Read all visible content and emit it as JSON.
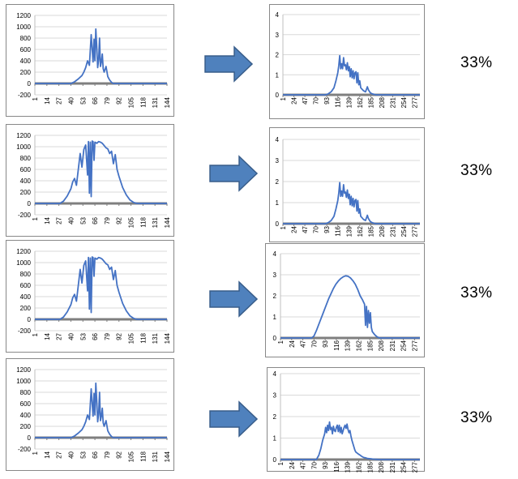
{
  "colors": {
    "line": "#4472C4",
    "zero_axis": "#7F7F7F",
    "grid": "#D9D9D9",
    "arrow_fill": "#4F81BD",
    "arrow_stroke": "#385D8A",
    "frame": "#888888"
  },
  "rows": [
    {
      "percent": "33%"
    },
    {
      "percent": "33%"
    },
    {
      "percent": "33%"
    },
    {
      "percent": "33%"
    }
  ],
  "chart_data": [
    {
      "type": "line",
      "title": "",
      "xlabel": "",
      "ylabel": "",
      "ylim": [
        -200,
        1200
      ],
      "yticks": [
        "-200",
        "0",
        "200",
        "400",
        "600",
        "800",
        "1000",
        "1200"
      ],
      "xticks": [
        "1",
        "14",
        "27",
        "40",
        "53",
        "66",
        "79",
        "92",
        "105",
        "118",
        "131",
        "144"
      ],
      "x": [
        1,
        40,
        44,
        48,
        52,
        54,
        56,
        58,
        60,
        62,
        64,
        65,
        66,
        67,
        68,
        69,
        70,
        71,
        72,
        73,
        74,
        75,
        76,
        78,
        80,
        82,
        84,
        86,
        88,
        92,
        144
      ],
      "y": [
        0,
        0,
        30,
        80,
        140,
        200,
        280,
        400,
        320,
        860,
        380,
        780,
        400,
        960,
        640,
        280,
        420,
        800,
        300,
        380,
        520,
        260,
        200,
        300,
        120,
        60,
        20,
        0,
        0,
        0,
        0
      ]
    },
    {
      "type": "line",
      "title": "",
      "xlabel": "",
      "ylabel": "",
      "ylim": [
        -200,
        1200
      ],
      "yticks": [
        "-200",
        "0",
        "200",
        "400",
        "600",
        "800",
        "1000",
        "1200"
      ],
      "xticks": [
        "1",
        "14",
        "27",
        "40",
        "53",
        "66",
        "79",
        "92",
        "105",
        "118",
        "131",
        "144"
      ],
      "x": [
        1,
        28,
        32,
        36,
        40,
        42,
        44,
        46,
        48,
        50,
        52,
        54,
        56,
        58,
        59,
        60,
        61,
        62,
        63,
        64,
        65,
        66,
        68,
        70,
        72,
        74,
        76,
        78,
        80,
        82,
        84,
        86,
        88,
        90,
        92,
        96,
        100,
        104,
        108,
        112,
        116,
        118,
        144
      ],
      "y": [
        0,
        0,
        40,
        130,
        260,
        380,
        440,
        320,
        600,
        880,
        640,
        950,
        1030,
        500,
        1090,
        180,
        1080,
        120,
        1100,
        1090,
        760,
        1080,
        1060,
        1090,
        1080,
        1060,
        1020,
        980,
        960,
        880,
        920,
        700,
        860,
        600,
        480,
        280,
        150,
        60,
        15,
        0,
        0,
        0,
        0
      ]
    },
    {
      "type": "line",
      "title": "",
      "xlabel": "",
      "ylabel": "",
      "ylim": [
        -200,
        1200
      ],
      "yticks": [
        "-200",
        "0",
        "200",
        "400",
        "600",
        "800",
        "1000",
        "1200"
      ],
      "xticks": [
        "1",
        "14",
        "27",
        "40",
        "53",
        "66",
        "79",
        "92",
        "105",
        "118",
        "131",
        "144"
      ],
      "x": [
        1,
        28,
        32,
        36,
        40,
        42,
        44,
        46,
        48,
        50,
        52,
        54,
        56,
        58,
        59,
        60,
        61,
        62,
        63,
        64,
        65,
        66,
        68,
        70,
        72,
        74,
        76,
        78,
        80,
        82,
        84,
        86,
        88,
        90,
        92,
        96,
        100,
        104,
        108,
        112,
        116,
        118,
        144
      ],
      "y": [
        0,
        0,
        40,
        130,
        260,
        380,
        440,
        320,
        600,
        880,
        640,
        950,
        1030,
        500,
        1090,
        180,
        1080,
        120,
        1100,
        1090,
        760,
        1080,
        1060,
        1090,
        1080,
        1060,
        1020,
        980,
        960,
        880,
        920,
        700,
        860,
        600,
        480,
        280,
        150,
        60,
        15,
        0,
        0,
        0,
        0
      ]
    },
    {
      "type": "line",
      "title": "",
      "xlabel": "",
      "ylabel": "",
      "ylim": [
        -200,
        1200
      ],
      "yticks": [
        "-200",
        "0",
        "200",
        "400",
        "600",
        "800",
        "1000",
        "1200"
      ],
      "xticks": [
        "1",
        "14",
        "27",
        "40",
        "53",
        "66",
        "79",
        "92",
        "105",
        "118",
        "131",
        "144"
      ],
      "x": [
        1,
        40,
        44,
        48,
        52,
        54,
        56,
        58,
        60,
        62,
        64,
        65,
        66,
        67,
        68,
        69,
        70,
        71,
        72,
        73,
        74,
        75,
        76,
        78,
        80,
        82,
        84,
        86,
        88,
        92,
        144
      ],
      "y": [
        0,
        0,
        30,
        80,
        140,
        200,
        280,
        400,
        320,
        860,
        380,
        780,
        400,
        960,
        640,
        280,
        420,
        800,
        300,
        380,
        520,
        260,
        200,
        300,
        120,
        60,
        20,
        0,
        0,
        0,
        0
      ]
    },
    {
      "type": "line",
      "title": "",
      "xlabel": "",
      "ylabel": "",
      "ylim": [
        0,
        4
      ],
      "yticks": [
        "0",
        "1",
        "2",
        "3",
        "4"
      ],
      "xticks": [
        "1",
        "24",
        "47",
        "70",
        "93",
        "116",
        "139",
        "162",
        "185",
        "208",
        "231",
        "254",
        "277"
      ],
      "x": [
        1,
        90,
        96,
        102,
        108,
        112,
        116,
        118,
        120,
        122,
        124,
        126,
        128,
        130,
        132,
        134,
        136,
        138,
        140,
        142,
        144,
        146,
        148,
        150,
        152,
        154,
        156,
        158,
        160,
        162,
        164,
        166,
        170,
        174,
        178,
        180,
        184,
        188,
        196,
        288
      ],
      "y": [
        0,
        0,
        0.05,
        0.15,
        0.35,
        0.7,
        1.1,
        1.45,
        1.95,
        1.3,
        1.55,
        1.3,
        1.85,
        1.45,
        1.5,
        1.25,
        1.6,
        1.2,
        1.4,
        0.9,
        1.3,
        0.85,
        1.2,
        0.8,
        1.1,
        1.15,
        0.6,
        1.1,
        0.5,
        0.7,
        0.35,
        0.3,
        0.2,
        0.15,
        0.4,
        0.25,
        0.1,
        0.05,
        0,
        0
      ]
    },
    {
      "type": "line",
      "title": "",
      "xlabel": "",
      "ylabel": "",
      "ylim": [
        0,
        4
      ],
      "yticks": [
        "0",
        "1",
        "2",
        "3",
        "4"
      ],
      "xticks": [
        "1",
        "24",
        "47",
        "70",
        "93",
        "116",
        "139",
        "162",
        "185",
        "208",
        "231",
        "254",
        "277"
      ],
      "x": [
        1,
        90,
        96,
        102,
        108,
        112,
        116,
        118,
        120,
        122,
        124,
        126,
        128,
        130,
        132,
        134,
        136,
        138,
        140,
        142,
        144,
        146,
        148,
        150,
        152,
        154,
        156,
        158,
        160,
        162,
        164,
        166,
        170,
        174,
        178,
        180,
        184,
        188,
        196,
        288
      ],
      "y": [
        0,
        0,
        0.05,
        0.15,
        0.35,
        0.7,
        1.1,
        1.45,
        1.95,
        1.3,
        1.55,
        1.3,
        1.85,
        1.45,
        1.5,
        1.25,
        1.6,
        1.2,
        1.4,
        0.9,
        1.3,
        0.85,
        1.2,
        0.8,
        1.1,
        1.15,
        0.6,
        1.1,
        0.5,
        0.7,
        0.35,
        0.3,
        0.2,
        0.15,
        0.4,
        0.25,
        0.1,
        0.05,
        0,
        0
      ]
    },
    {
      "type": "line",
      "title": "",
      "xlabel": "",
      "ylabel": "",
      "ylim": [
        0,
        4
      ],
      "yticks": [
        "0",
        "1",
        "2",
        "3",
        "4"
      ],
      "xticks": [
        "1",
        "24",
        "47",
        "70",
        "93",
        "116",
        "139",
        "162",
        "185",
        "208",
        "231",
        "254",
        "277"
      ],
      "x": [
        1,
        65,
        70,
        75,
        80,
        85,
        90,
        95,
        100,
        105,
        110,
        115,
        120,
        125,
        130,
        135,
        140,
        145,
        150,
        155,
        160,
        165,
        170,
        174,
        176,
        178,
        180,
        182,
        184,
        186,
        188,
        190,
        195,
        200,
        205,
        288
      ],
      "y": [
        0,
        0,
        0.1,
        0.35,
        0.65,
        0.95,
        1.25,
        1.55,
        1.85,
        2.1,
        2.35,
        2.55,
        2.7,
        2.82,
        2.9,
        2.95,
        2.93,
        2.85,
        2.72,
        2.55,
        2.3,
        2.0,
        1.8,
        1.6,
        0.6,
        1.5,
        0.5,
        1.3,
        0.7,
        1.2,
        0.5,
        0.3,
        0.15,
        0.05,
        0,
        0
      ]
    },
    {
      "type": "line",
      "title": "",
      "xlabel": "",
      "ylabel": "",
      "ylim": [
        0,
        4
      ],
      "yticks": [
        "0",
        "1",
        "2",
        "3",
        "4"
      ],
      "xticks": [
        "1",
        "24",
        "47",
        "70",
        "93",
        "116",
        "139",
        "162",
        "185",
        "208",
        "231",
        "254",
        "277"
      ],
      "x": [
        1,
        75,
        80,
        84,
        88,
        92,
        94,
        96,
        98,
        100,
        102,
        104,
        106,
        108,
        110,
        112,
        114,
        116,
        118,
        120,
        122,
        124,
        126,
        128,
        130,
        132,
        134,
        136,
        138,
        140,
        142,
        144,
        146,
        148,
        150,
        152,
        154,
        156,
        160,
        164,
        168,
        172,
        176,
        180,
        184,
        188,
        192,
        198,
        204,
        212,
        288
      ],
      "y": [
        0,
        0,
        0.2,
        0.5,
        0.9,
        1.2,
        1.5,
        1.25,
        1.6,
        1.35,
        1.75,
        1.4,
        1.5,
        1.2,
        1.55,
        1.35,
        1.3,
        1.5,
        1.6,
        1.3,
        1.6,
        1.25,
        1.5,
        1.2,
        1.35,
        1.5,
        1.6,
        1.45,
        1.65,
        1.4,
        1.25,
        1.35,
        1.1,
        0.9,
        0.75,
        0.6,
        0.45,
        0.35,
        0.28,
        0.22,
        0.15,
        0.1,
        0.08,
        0.05,
        0.04,
        0.03,
        0.02,
        0.01,
        0,
        0,
        0
      ]
    }
  ]
}
